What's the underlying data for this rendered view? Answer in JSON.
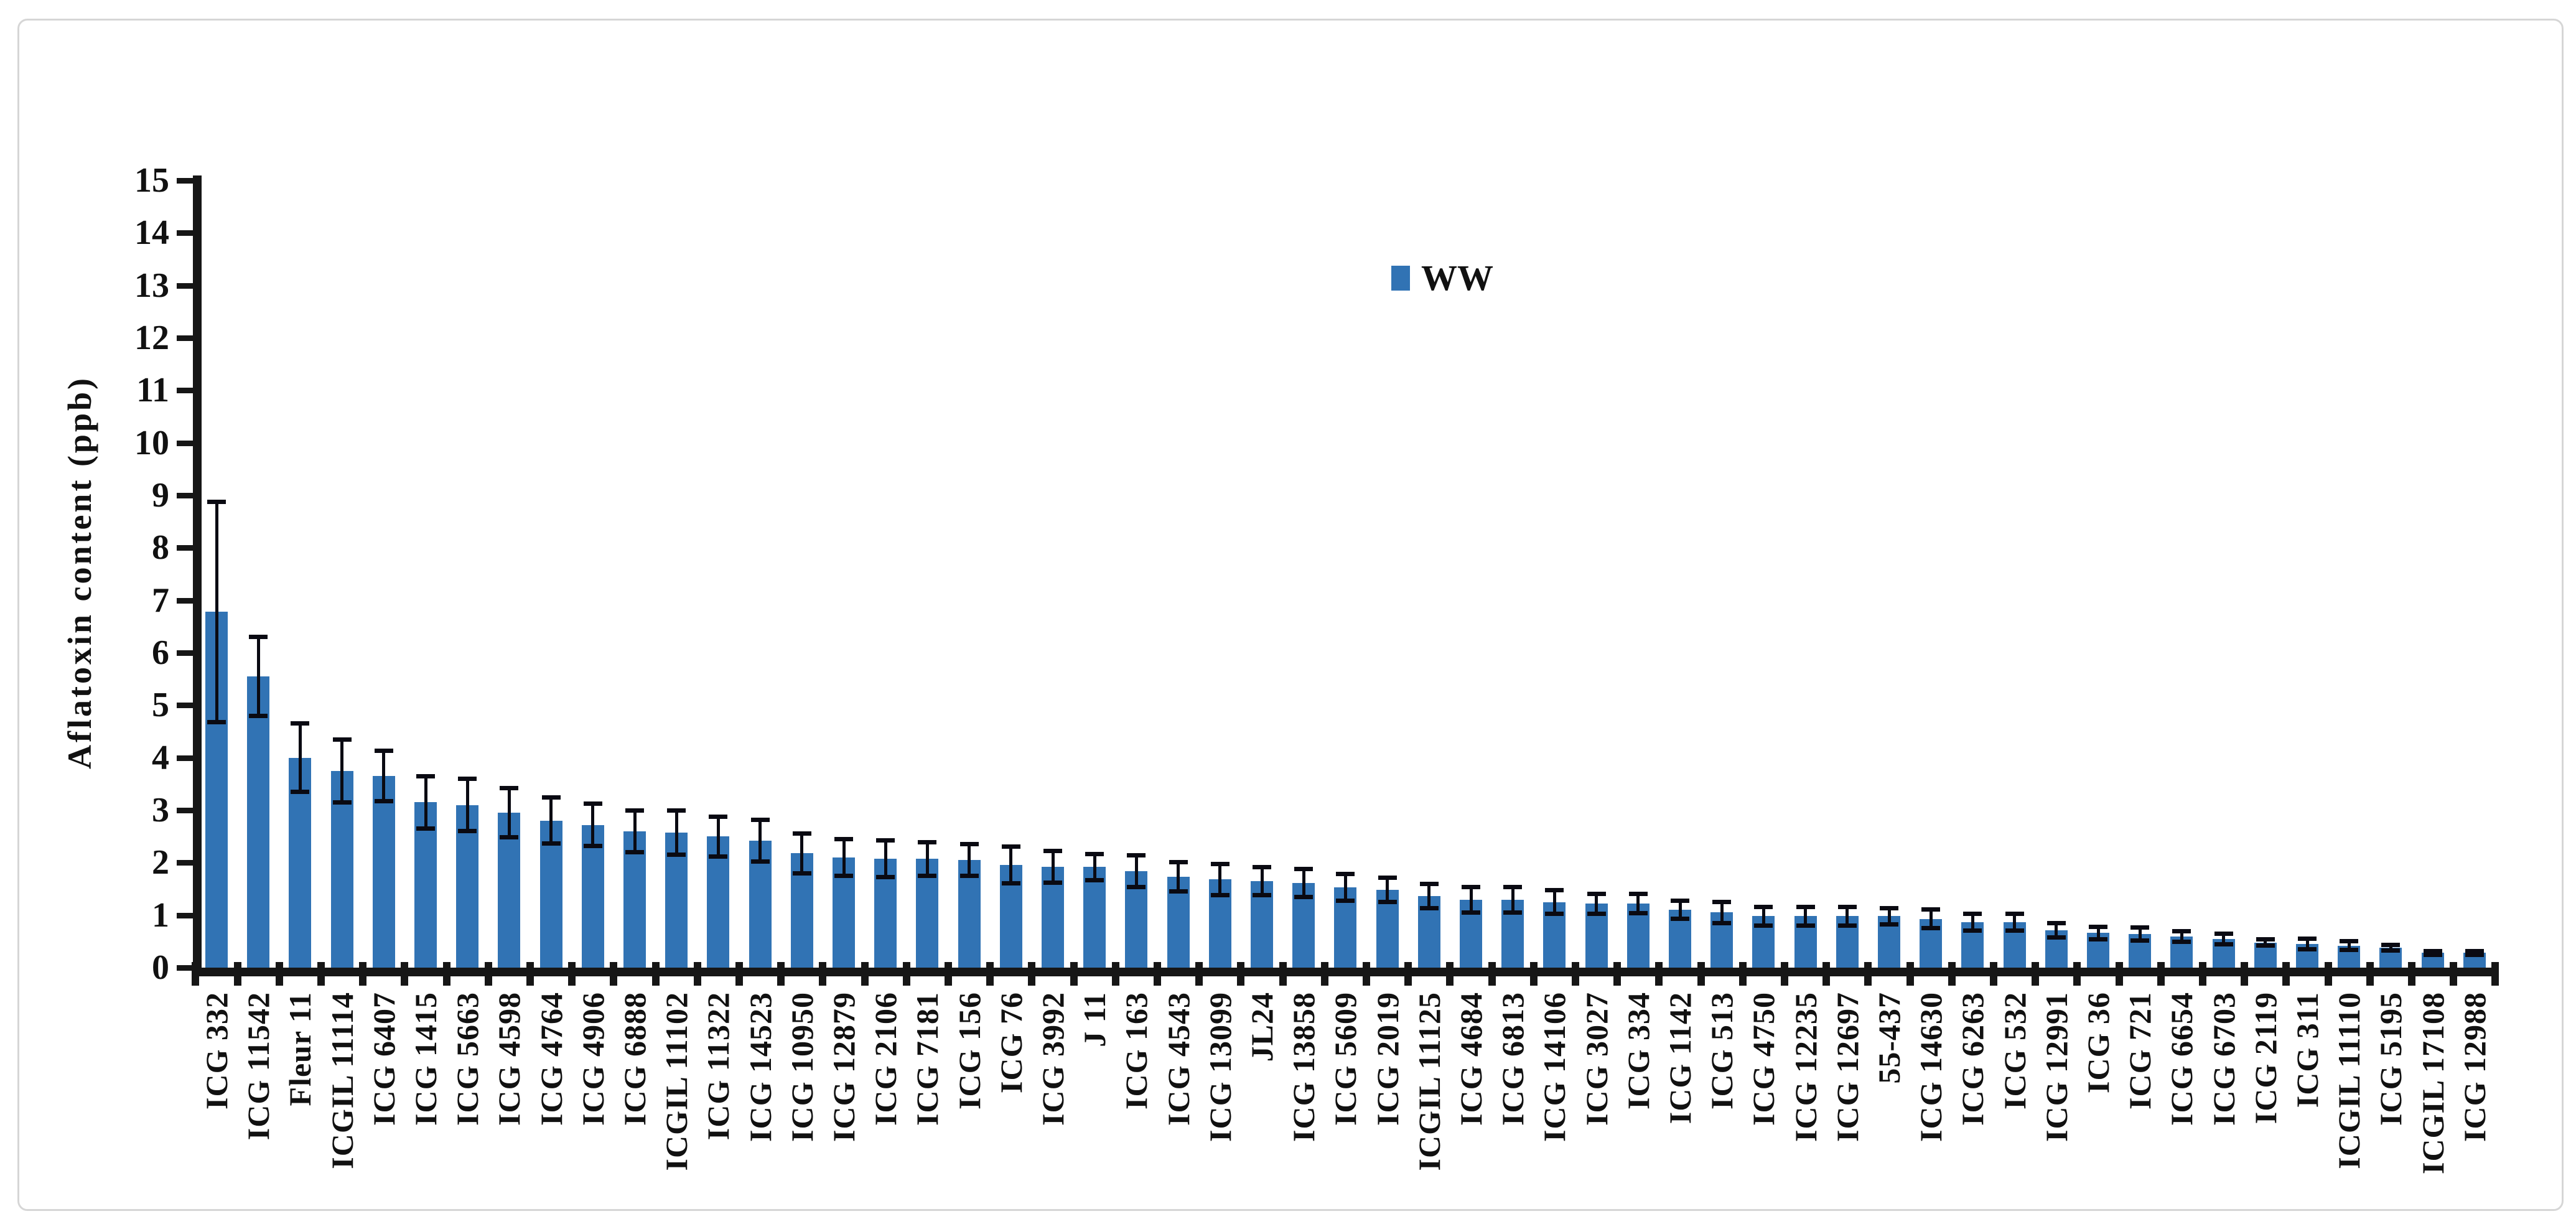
{
  "figure": {
    "legend_label": "WW",
    "y_axis_title": "Aflatoxin content (ppb)"
  },
  "chart_data": {
    "type": "bar",
    "title": "",
    "xlabel": "",
    "ylabel": "Aflatoxin content (ppb)",
    "ylim": [
      0,
      15
    ],
    "ytick_step": 1,
    "ytick_labels": [
      "0",
      "1",
      "2",
      "3",
      "4",
      "5",
      "6",
      "7",
      "8",
      "9",
      "10",
      "11",
      "12",
      "13",
      "14",
      "15"
    ],
    "grid": false,
    "legend": {
      "position": "top-center",
      "entries": [
        "WW"
      ]
    },
    "colors": {
      "bar": "#3173b4",
      "error": "#0a0a12",
      "axis": "#161616",
      "text": "#111111",
      "border": "#d6d6d6"
    },
    "categories": [
      "ICG 332",
      "ICG 11542",
      "Fleur 11",
      "ICGIL 11114",
      "ICG 6407",
      "ICG 1415",
      "ICG 5663",
      "ICG 4598",
      "ICG 4764",
      "ICG 4906",
      "ICG 6888",
      "ICGIL 11102",
      "ICG 11322",
      "ICG 14523",
      "ICG 10950",
      "ICG 12879",
      "ICG 2106",
      "ICG 7181",
      "ICG 156",
      "ICG 76",
      "ICG 3992",
      "J 11",
      "ICG 163",
      "ICG 4543",
      "ICG 13099",
      "JL24",
      "ICG 13858",
      "ICG 5609",
      "ICG 2019",
      "ICGIL 11125",
      "ICG 4684",
      "ICG 6813",
      "ICG 14106",
      "ICG 3027",
      "ICG 334",
      "ICG 1142",
      "ICG 513",
      "ICG 4750",
      "ICG 12235",
      "ICG 12697",
      "55-437",
      "ICG 14630",
      "ICG 6263",
      "ICG 532",
      "ICG 12991",
      "ICG 36",
      "ICG 721",
      "ICG 6654",
      "ICG 6703",
      "ICG 2119",
      "ICG 311",
      "ICGIL 11110",
      "ICG 5195",
      "ICGIL 17108",
      "ICG 12988"
    ],
    "series": [
      {
        "name": "WW",
        "values": [
          6.78,
          5.55,
          4.0,
          3.75,
          3.65,
          3.15,
          3.1,
          2.95,
          2.8,
          2.72,
          2.6,
          2.57,
          2.5,
          2.42,
          2.18,
          2.1,
          2.08,
          2.07,
          2.05,
          1.96,
          1.92,
          1.92,
          1.84,
          1.73,
          1.68,
          1.65,
          1.61,
          1.53,
          1.48,
          1.36,
          1.29,
          1.29,
          1.25,
          1.22,
          1.22,
          1.1,
          1.05,
          0.98,
          0.98,
          0.98,
          0.98,
          0.93,
          0.87,
          0.87,
          0.71,
          0.66,
          0.64,
          0.59,
          0.55,
          0.48,
          0.45,
          0.42,
          0.38,
          0.28,
          0.28
        ],
        "errors": [
          2.1,
          0.75,
          0.65,
          0.6,
          0.48,
          0.5,
          0.5,
          0.47,
          0.44,
          0.4,
          0.4,
          0.42,
          0.38,
          0.4,
          0.38,
          0.35,
          0.35,
          0.32,
          0.3,
          0.35,
          0.3,
          0.25,
          0.3,
          0.28,
          0.3,
          0.27,
          0.27,
          0.26,
          0.23,
          0.23,
          0.24,
          0.24,
          0.23,
          0.19,
          0.18,
          0.17,
          0.2,
          0.18,
          0.18,
          0.18,
          0.15,
          0.18,
          0.16,
          0.16,
          0.14,
          0.12,
          0.12,
          0.1,
          0.1,
          0.06,
          0.1,
          0.08,
          0.05,
          0.04,
          0.04
        ]
      }
    ]
  }
}
